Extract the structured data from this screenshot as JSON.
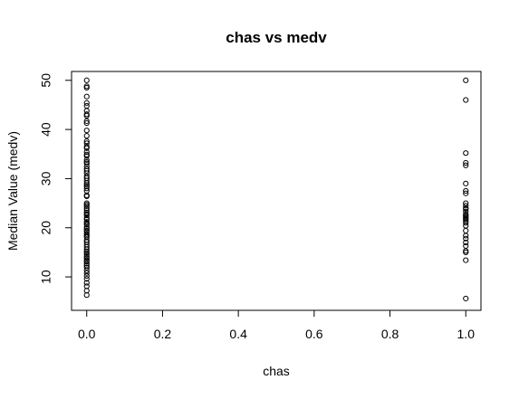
{
  "chart_data": {
    "type": "scatter",
    "title": "chas vs medv",
    "x_label": "chas",
    "y_label": "Median Value (medv)",
    "x": [
      0,
      0,
      0,
      0,
      0,
      0,
      0,
      0,
      0,
      0,
      0,
      0,
      0,
      0,
      0,
      0,
      0,
      0,
      0,
      0,
      0,
      0,
      0,
      0,
      0,
      0,
      0,
      0,
      0,
      0,
      0,
      0,
      0,
      0,
      0,
      0,
      0,
      0,
      0,
      0,
      0,
      0,
      0,
      0,
      0,
      0,
      0,
      0,
      0,
      0,
      0,
      0,
      0,
      0,
      0,
      0,
      0,
      0,
      0,
      0,
      0,
      0,
      0,
      0,
      0,
      0,
      0,
      0,
      0,
      0,
      0,
      0,
      0,
      0,
      0,
      0,
      0,
      0,
      0,
      0,
      1,
      1,
      1,
      1,
      1,
      1,
      1,
      1,
      1,
      1,
      1,
      1,
      1,
      1,
      1,
      1,
      1,
      1,
      1,
      1,
      1,
      1,
      1,
      1,
      1,
      1,
      1,
      1,
      1,
      1
    ],
    "values": [
      50,
      48.8,
      48.5,
      46.7,
      45.4,
      44.8,
      43.8,
      43.1,
      42.8,
      41.7,
      41.3,
      39.8,
      38.7,
      37.6,
      37.2,
      36.5,
      36.2,
      35.4,
      34.9,
      34.6,
      33.8,
      33.4,
      33.1,
      32.5,
      32,
      31.6,
      31.1,
      30.5,
      30.1,
      29.6,
      29.1,
      28.7,
      28.4,
      28,
      27.5,
      26.6,
      26.4,
      25,
      24.7,
      24.4,
      24,
      23.6,
      23.1,
      22.8,
      22.5,
      22,
      21.7,
      21.2,
      20.9,
      20.6,
      20.1,
      19.8,
      19.4,
      19.1,
      18.7,
      18.4,
      18.1,
      17.5,
      17.1,
      16.6,
      16.1,
      15.6,
      15.2,
      14.9,
      14.5,
      14.1,
      13.8,
      13.4,
      13.1,
      12.7,
      12.3,
      11.9,
      11.3,
      10.8,
      10.2,
      9.6,
      8.8,
      8.1,
      7.2,
      6.3,
      50,
      46,
      35.2,
      33.2,
      32.7,
      29,
      27.5,
      27,
      25,
      24.5,
      23.3,
      22.7,
      22.2,
      22,
      21.7,
      21.4,
      21,
      20.4,
      19.4,
      18.4,
      17.8,
      17,
      16.3,
      15.3,
      15,
      13.4,
      24,
      23.8,
      22.5,
      5.6
    ],
    "xlim": [
      -0.04,
      1.04
    ],
    "ylim": [
      3.2,
      51.8
    ],
    "xticks": [
      {
        "value": 0,
        "label": "0.0"
      },
      0.2,
      0.4,
      0.6,
      0.8,
      {
        "value": 1,
        "label": "1.0"
      }
    ],
    "yticks": [
      10,
      20,
      30,
      40,
      50
    ],
    "color": "#000000"
  }
}
